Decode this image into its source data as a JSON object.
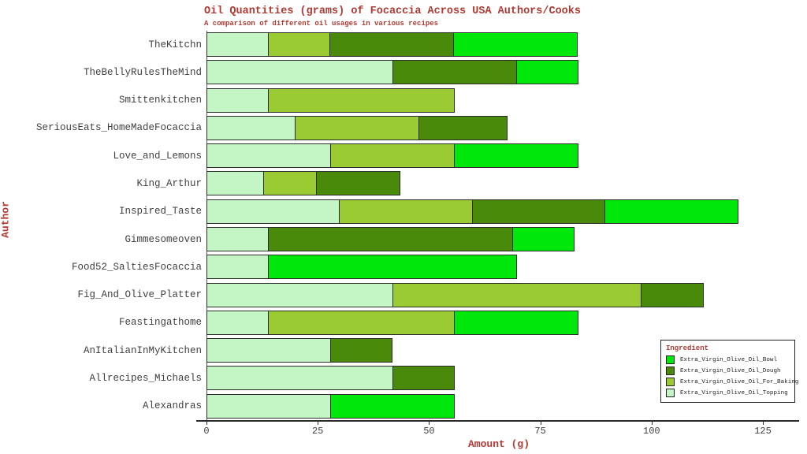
{
  "title": "Oil Quantities (grams) of Focaccia Across USA Authors/Cooks",
  "subtitle": "A comparison of different oil usages in various recipes",
  "xlabel": "Amount (g)",
  "ylabel": "Author",
  "legend": {
    "title": "Ingredient",
    "items": [
      {
        "label": "Extra_Virgin_Olive_Oil_Bowl",
        "color": "#00E80B"
      },
      {
        "label": "Extra_Virgin_Olive_Oil_Dough",
        "color": "#4A8A0A"
      },
      {
        "label": "Extra_Virgin_Olive_Oil_For_Baking",
        "color": "#9BCB33"
      },
      {
        "label": "Extra_Virgin_Olive_Oil_Topping",
        "color": "#C3F6C4"
      }
    ]
  },
  "chart_data": {
    "type": "bar",
    "orientation": "horizontal",
    "stacked": true,
    "title": "Oil Quantities (grams) of Focaccia Across USA Authors/Cooks",
    "subtitle": "A comparison of different oil usages in various recipes",
    "xlabel": "Amount (g)",
    "ylabel": "Author",
    "xlim": [
      0,
      133
    ],
    "x_ticks": [
      0,
      25,
      50,
      75,
      100,
      125
    ],
    "grid": false,
    "legend_position": "bottom-right",
    "categories": [
      "TheKitchn",
      "TheBellyRulesTheMind",
      "Smittenkitchen",
      "SeriousEats_HomeMadeFocaccia",
      "Love_and_Lemons",
      "King_Arthur",
      "Inspired_Taste",
      "Gimmesomeoven",
      "Food52_SaltiesFocaccia",
      "Fig_And_Olive_Platter",
      "Feastingathome",
      "AnItalianInMyKitchen",
      "Allrecipes_Michaels",
      "Alexandras"
    ],
    "series": [
      {
        "name": "Extra_Virgin_Olive_Oil_Topping",
        "color": "#C3F6C4",
        "values": [
          14,
          42,
          14,
          20,
          28,
          13,
          30,
          14,
          14,
          42,
          14,
          28,
          42,
          28
        ]
      },
      {
        "name": "Extra_Virgin_Olive_Oil_For_Baking",
        "color": "#9BCB33",
        "values": [
          14,
          0,
          42,
          28,
          28,
          12,
          30,
          0,
          0,
          56,
          42,
          0,
          0,
          0
        ]
      },
      {
        "name": "Extra_Virgin_Olive_Oil_Dough",
        "color": "#4A8A0A",
        "values": [
          28,
          28,
          0,
          20,
          0,
          19,
          30,
          55,
          0,
          14,
          0,
          14,
          14,
          0
        ]
      },
      {
        "name": "Extra_Virgin_Olive_Oil_Bowl",
        "color": "#00E80B",
        "values": [
          28,
          14,
          0,
          0,
          28,
          0,
          30,
          14,
          56,
          0,
          28,
          0,
          0,
          28
        ]
      }
    ]
  },
  "colors": {
    "accent_text": "#B03A33",
    "axis_text": "#3F3F3F",
    "bar_border": "#2B2B2B",
    "background": "#FFFFFF"
  }
}
